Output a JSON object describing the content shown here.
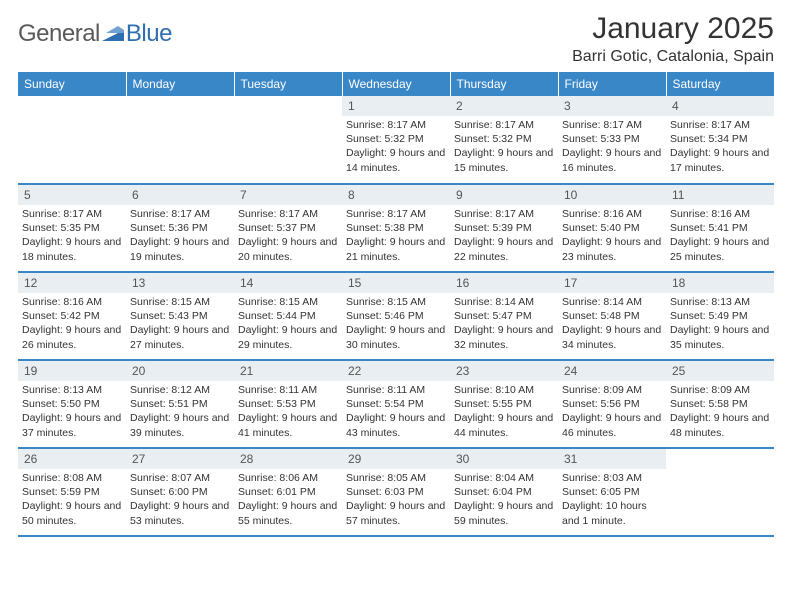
{
  "logo": {
    "word1": "General",
    "word2": "Blue",
    "word2_color": "#2f6fb0",
    "mark_color": "#2f6fb0"
  },
  "title": "January 2025",
  "location": "Barri Gotic, Catalonia, Spain",
  "header_bg": "#3a87c8",
  "daynum_bg": "#e9eef2",
  "row_border": "#3a87c8",
  "days_of_week": [
    "Sunday",
    "Monday",
    "Tuesday",
    "Wednesday",
    "Thursday",
    "Friday",
    "Saturday"
  ],
  "font_family": "Arial",
  "weeks": [
    [
      null,
      null,
      null,
      {
        "n": "1",
        "sunrise": "8:17 AM",
        "sunset": "5:32 PM",
        "daylight": "9 hours and 14 minutes."
      },
      {
        "n": "2",
        "sunrise": "8:17 AM",
        "sunset": "5:32 PM",
        "daylight": "9 hours and 15 minutes."
      },
      {
        "n": "3",
        "sunrise": "8:17 AM",
        "sunset": "5:33 PM",
        "daylight": "9 hours and 16 minutes."
      },
      {
        "n": "4",
        "sunrise": "8:17 AM",
        "sunset": "5:34 PM",
        "daylight": "9 hours and 17 minutes."
      }
    ],
    [
      {
        "n": "5",
        "sunrise": "8:17 AM",
        "sunset": "5:35 PM",
        "daylight": "9 hours and 18 minutes."
      },
      {
        "n": "6",
        "sunrise": "8:17 AM",
        "sunset": "5:36 PM",
        "daylight": "9 hours and 19 minutes."
      },
      {
        "n": "7",
        "sunrise": "8:17 AM",
        "sunset": "5:37 PM",
        "daylight": "9 hours and 20 minutes."
      },
      {
        "n": "8",
        "sunrise": "8:17 AM",
        "sunset": "5:38 PM",
        "daylight": "9 hours and 21 minutes."
      },
      {
        "n": "9",
        "sunrise": "8:17 AM",
        "sunset": "5:39 PM",
        "daylight": "9 hours and 22 minutes."
      },
      {
        "n": "10",
        "sunrise": "8:16 AM",
        "sunset": "5:40 PM",
        "daylight": "9 hours and 23 minutes."
      },
      {
        "n": "11",
        "sunrise": "8:16 AM",
        "sunset": "5:41 PM",
        "daylight": "9 hours and 25 minutes."
      }
    ],
    [
      {
        "n": "12",
        "sunrise": "8:16 AM",
        "sunset": "5:42 PM",
        "daylight": "9 hours and 26 minutes."
      },
      {
        "n": "13",
        "sunrise": "8:15 AM",
        "sunset": "5:43 PM",
        "daylight": "9 hours and 27 minutes."
      },
      {
        "n": "14",
        "sunrise": "8:15 AM",
        "sunset": "5:44 PM",
        "daylight": "9 hours and 29 minutes."
      },
      {
        "n": "15",
        "sunrise": "8:15 AM",
        "sunset": "5:46 PM",
        "daylight": "9 hours and 30 minutes."
      },
      {
        "n": "16",
        "sunrise": "8:14 AM",
        "sunset": "5:47 PM",
        "daylight": "9 hours and 32 minutes."
      },
      {
        "n": "17",
        "sunrise": "8:14 AM",
        "sunset": "5:48 PM",
        "daylight": "9 hours and 34 minutes."
      },
      {
        "n": "18",
        "sunrise": "8:13 AM",
        "sunset": "5:49 PM",
        "daylight": "9 hours and 35 minutes."
      }
    ],
    [
      {
        "n": "19",
        "sunrise": "8:13 AM",
        "sunset": "5:50 PM",
        "daylight": "9 hours and 37 minutes."
      },
      {
        "n": "20",
        "sunrise": "8:12 AM",
        "sunset": "5:51 PM",
        "daylight": "9 hours and 39 minutes."
      },
      {
        "n": "21",
        "sunrise": "8:11 AM",
        "sunset": "5:53 PM",
        "daylight": "9 hours and 41 minutes."
      },
      {
        "n": "22",
        "sunrise": "8:11 AM",
        "sunset": "5:54 PM",
        "daylight": "9 hours and 43 minutes."
      },
      {
        "n": "23",
        "sunrise": "8:10 AM",
        "sunset": "5:55 PM",
        "daylight": "9 hours and 44 minutes."
      },
      {
        "n": "24",
        "sunrise": "8:09 AM",
        "sunset": "5:56 PM",
        "daylight": "9 hours and 46 minutes."
      },
      {
        "n": "25",
        "sunrise": "8:09 AM",
        "sunset": "5:58 PM",
        "daylight": "9 hours and 48 minutes."
      }
    ],
    [
      {
        "n": "26",
        "sunrise": "8:08 AM",
        "sunset": "5:59 PM",
        "daylight": "9 hours and 50 minutes."
      },
      {
        "n": "27",
        "sunrise": "8:07 AM",
        "sunset": "6:00 PM",
        "daylight": "9 hours and 53 minutes."
      },
      {
        "n": "28",
        "sunrise": "8:06 AM",
        "sunset": "6:01 PM",
        "daylight": "9 hours and 55 minutes."
      },
      {
        "n": "29",
        "sunrise": "8:05 AM",
        "sunset": "6:03 PM",
        "daylight": "9 hours and 57 minutes."
      },
      {
        "n": "30",
        "sunrise": "8:04 AM",
        "sunset": "6:04 PM",
        "daylight": "9 hours and 59 minutes."
      },
      {
        "n": "31",
        "sunrise": "8:03 AM",
        "sunset": "6:05 PM",
        "daylight": "10 hours and 1 minute."
      },
      null
    ]
  ],
  "labels": {
    "sunrise": "Sunrise:",
    "sunset": "Sunset:",
    "daylight": "Daylight:"
  }
}
